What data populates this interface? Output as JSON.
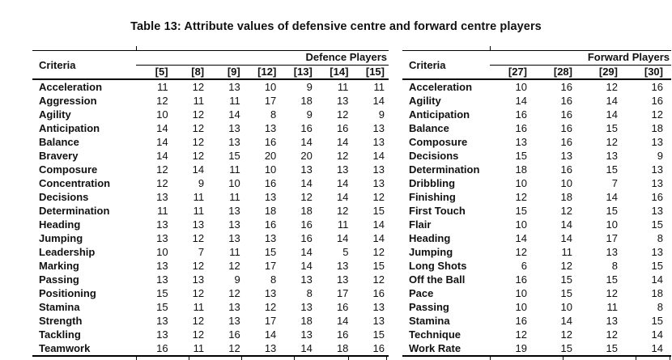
{
  "title": "Table 13: Attribute values of defensive centre and forward centre players",
  "colors": {
    "text": "#111111",
    "border": "#000000",
    "background": "#ffffff"
  },
  "tables": [
    {
      "criteria_label": "Criteria",
      "group_label": "Defence Players",
      "columns": [
        "[5]",
        "[8]",
        "[9]",
        "[12]",
        "[13]",
        "[14]",
        "[15]"
      ],
      "rows": [
        {
          "label": "Acceleration",
          "values": [
            11,
            12,
            13,
            10,
            9,
            11,
            11
          ]
        },
        {
          "label": "Aggression",
          "values": [
            12,
            11,
            11,
            17,
            18,
            13,
            14
          ]
        },
        {
          "label": "Agility",
          "values": [
            10,
            12,
            14,
            8,
            9,
            12,
            9
          ]
        },
        {
          "label": "Anticipation",
          "values": [
            14,
            12,
            13,
            13,
            16,
            16,
            13
          ]
        },
        {
          "label": "Balance",
          "values": [
            14,
            12,
            13,
            16,
            14,
            14,
            13
          ]
        },
        {
          "label": "Bravery",
          "values": [
            14,
            12,
            15,
            20,
            20,
            12,
            14
          ]
        },
        {
          "label": "Composure",
          "values": [
            12,
            14,
            11,
            10,
            13,
            13,
            13
          ]
        },
        {
          "label": "Concentration",
          "values": [
            12,
            9,
            10,
            16,
            14,
            14,
            13
          ]
        },
        {
          "label": "Decisions",
          "values": [
            13,
            11,
            11,
            13,
            12,
            14,
            12
          ]
        },
        {
          "label": "Determination",
          "values": [
            11,
            11,
            13,
            18,
            18,
            12,
            15
          ]
        },
        {
          "label": "Heading",
          "values": [
            13,
            13,
            13,
            16,
            16,
            11,
            14
          ]
        },
        {
          "label": "Jumping",
          "values": [
            13,
            12,
            13,
            13,
            16,
            14,
            14
          ]
        },
        {
          "label": "Leadership",
          "values": [
            10,
            7,
            11,
            15,
            14,
            5,
            12
          ]
        },
        {
          "label": "Marking",
          "values": [
            13,
            12,
            12,
            17,
            14,
            13,
            15
          ]
        },
        {
          "label": "Passing",
          "values": [
            13,
            13,
            9,
            8,
            13,
            13,
            12
          ]
        },
        {
          "label": "Positioning",
          "values": [
            15,
            12,
            12,
            13,
            8,
            17,
            16
          ]
        },
        {
          "label": "Stamina",
          "values": [
            15,
            11,
            13,
            12,
            13,
            16,
            13
          ]
        },
        {
          "label": "Strength",
          "values": [
            13,
            12,
            13,
            17,
            18,
            14,
            13
          ]
        },
        {
          "label": "Tackling",
          "values": [
            13,
            12,
            16,
            14,
            13,
            16,
            15
          ]
        },
        {
          "label": "Teamwork",
          "values": [
            16,
            11,
            12,
            13,
            14,
            18,
            16
          ]
        }
      ]
    },
    {
      "criteria_label": "Criteria",
      "group_label": "Forward Players",
      "columns": [
        "[27]",
        "[28]",
        "[29]",
        "[30]"
      ],
      "rows": [
        {
          "label": "Acceleration",
          "values": [
            10,
            16,
            12,
            16
          ]
        },
        {
          "label": "Agility",
          "values": [
            14,
            16,
            14,
            16
          ]
        },
        {
          "label": "Anticipation",
          "values": [
            16,
            16,
            14,
            12
          ]
        },
        {
          "label": "Balance",
          "values": [
            16,
            16,
            15,
            18
          ]
        },
        {
          "label": "Composure",
          "values": [
            13,
            16,
            12,
            13
          ]
        },
        {
          "label": "Decisions",
          "values": [
            15,
            13,
            13,
            9
          ]
        },
        {
          "label": "Determination",
          "values": [
            18,
            16,
            15,
            13
          ]
        },
        {
          "label": "Dribbling",
          "values": [
            10,
            10,
            7,
            13
          ]
        },
        {
          "label": "Finishing",
          "values": [
            12,
            18,
            14,
            16
          ]
        },
        {
          "label": "First Touch",
          "values": [
            15,
            12,
            15,
            13
          ]
        },
        {
          "label": "Flair",
          "values": [
            10,
            14,
            10,
            15
          ]
        },
        {
          "label": "Heading",
          "values": [
            14,
            14,
            17,
            8
          ]
        },
        {
          "label": "Jumping",
          "values": [
            12,
            11,
            13,
            13
          ]
        },
        {
          "label": "Long Shots",
          "values": [
            6,
            12,
            8,
            15
          ]
        },
        {
          "label": "Off the Ball",
          "values": [
            16,
            15,
            15,
            14
          ]
        },
        {
          "label": "Pace",
          "values": [
            10,
            15,
            12,
            18
          ]
        },
        {
          "label": "Passing",
          "values": [
            10,
            10,
            11,
            8
          ]
        },
        {
          "label": "Stamina",
          "values": [
            16,
            14,
            13,
            15
          ]
        },
        {
          "label": "Technique",
          "values": [
            12,
            12,
            12,
            14
          ]
        },
        {
          "label": "Work Rate",
          "values": [
            19,
            15,
            15,
            14
          ]
        }
      ]
    }
  ],
  "chart_data": {
    "type": "table",
    "title": "Table 13: Attribute values of defensive centre and forward centre players"
  }
}
